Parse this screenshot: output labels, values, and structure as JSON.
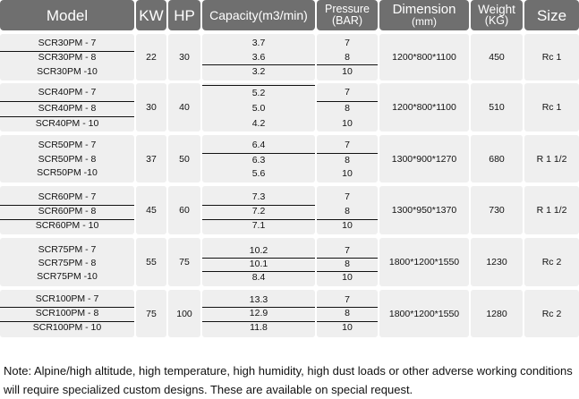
{
  "headers": {
    "model": "Model",
    "kw": "KW",
    "hp": "HP",
    "capacity": "Capacity(m3/min)",
    "pressure_top": "Pressure",
    "pressure_bottom": "(BAR)",
    "dimension_top": "Dimension",
    "dimension_bottom": "(mm)",
    "weight_top": "Weight",
    "weight_bottom": "(KG)",
    "size": "Size"
  },
  "groups": [
    {
      "models": [
        "SCR30PM - 7",
        "SCR30PM - 8",
        "SCR30PM -10"
      ],
      "kw": "22",
      "hp": "30",
      "capacity": [
        "3.7",
        "3.6",
        "3.2"
      ],
      "pressure": [
        "7",
        "8",
        "10"
      ],
      "dimension": "1200*800*1100",
      "weight": "450",
      "size": "Rc 1"
    },
    {
      "models": [
        "SCR40PM - 7",
        "SCR40PM - 8",
        "SCR40PM - 10"
      ],
      "kw": "30",
      "hp": "40",
      "capacity": [
        "5.2",
        "5.0",
        "4.2"
      ],
      "pressure": [
        "7",
        "8",
        "10"
      ],
      "dimension": "1200*800*1100",
      "weight": "510",
      "size": "Rc 1"
    },
    {
      "models": [
        "SCR50PM - 7",
        "SCR50PM - 8",
        "SCR50PM -10"
      ],
      "kw": "37",
      "hp": "50",
      "capacity": [
        "6.4",
        "6.3",
        "5.6"
      ],
      "pressure": [
        "7",
        "8",
        "10"
      ],
      "dimension": "1300*900*1270",
      "weight": "680",
      "size": "R 1  1/2"
    },
    {
      "models": [
        "SCR60PM - 7",
        "SCR60PM - 8",
        "SCR60PM - 10"
      ],
      "kw": "45",
      "hp": "60",
      "capacity": [
        "7.3",
        "7.2",
        "7.1"
      ],
      "pressure": [
        "7",
        "8",
        "10"
      ],
      "dimension": "1300*950*1370",
      "weight": "730",
      "size": "R 1  1/2"
    },
    {
      "models": [
        "SCR75PM - 7",
        "SCR75PM - 8",
        "SCR75PM -10"
      ],
      "kw": "55",
      "hp": "75",
      "capacity": [
        "10.2",
        "10.1",
        "8.4"
      ],
      "pressure": [
        "7",
        "8",
        "10"
      ],
      "dimension": "1800*1200*1550",
      "weight": "1230",
      "size": "Rc 2"
    },
    {
      "models": [
        "SCR100PM - 7",
        "SCR100PM - 8",
        "SCR100PM - 10"
      ],
      "kw": "75",
      "hp": "100",
      "capacity": [
        "13.3",
        "12.9",
        "11.8"
      ],
      "pressure": [
        "7",
        "8",
        "10"
      ],
      "dimension": "1800*1200*1550",
      "weight": "1280",
      "size": "Rc 2"
    }
  ],
  "note": "Note: Alpine/high altitude, high temperature, high humidity, high dust loads or other adverse working conditions will require specialized custom designs. These are available on special request."
}
